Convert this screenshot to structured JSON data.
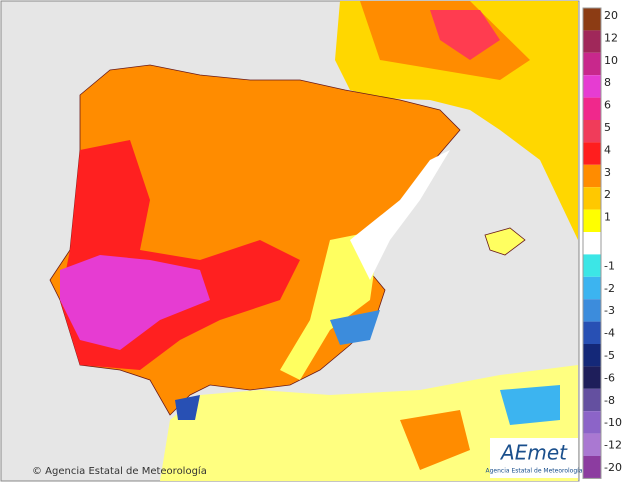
{
  "footer": {
    "copyright": "© Agencia Estatal de Meteorología"
  },
  "logo": {
    "name": "AEmet",
    "subtitle": "Agencia Estatal de Meteorología"
  },
  "legend": [
    {
      "label": 20,
      "color": "#8c3c14"
    },
    {
      "label": 12,
      "color": "#a0285a"
    },
    {
      "label": 10,
      "color": "#c8288c"
    },
    {
      "label": 8,
      "color": "#e63cd2"
    },
    {
      "label": 6,
      "color": "#f0288c"
    },
    {
      "label": 5,
      "color": "#f03c5a"
    },
    {
      "label": 4,
      "color": "#ff1e1e"
    },
    {
      "label": 3,
      "color": "#ff8c00"
    },
    {
      "label": 2,
      "color": "#ffc800"
    },
    {
      "label": 1,
      "color": "#ffff00"
    },
    {
      "label": -1,
      "color": "#3ce6e6"
    },
    {
      "label": -2,
      "color": "#3cb4f0"
    },
    {
      "label": -3,
      "color": "#3c8cdc"
    },
    {
      "label": -4,
      "color": "#2850b4"
    },
    {
      "label": -5,
      "color": "#142878"
    },
    {
      "label": -6,
      "color": "#1e1e5a"
    },
    {
      "label": -8,
      "color": "#6450a0"
    },
    {
      "label": -10,
      "color": "#8c64c8"
    },
    {
      "label": -12,
      "color": "#aa78d2"
    },
    {
      "label": -20,
      "color": "#8c3ca0"
    }
  ]
}
